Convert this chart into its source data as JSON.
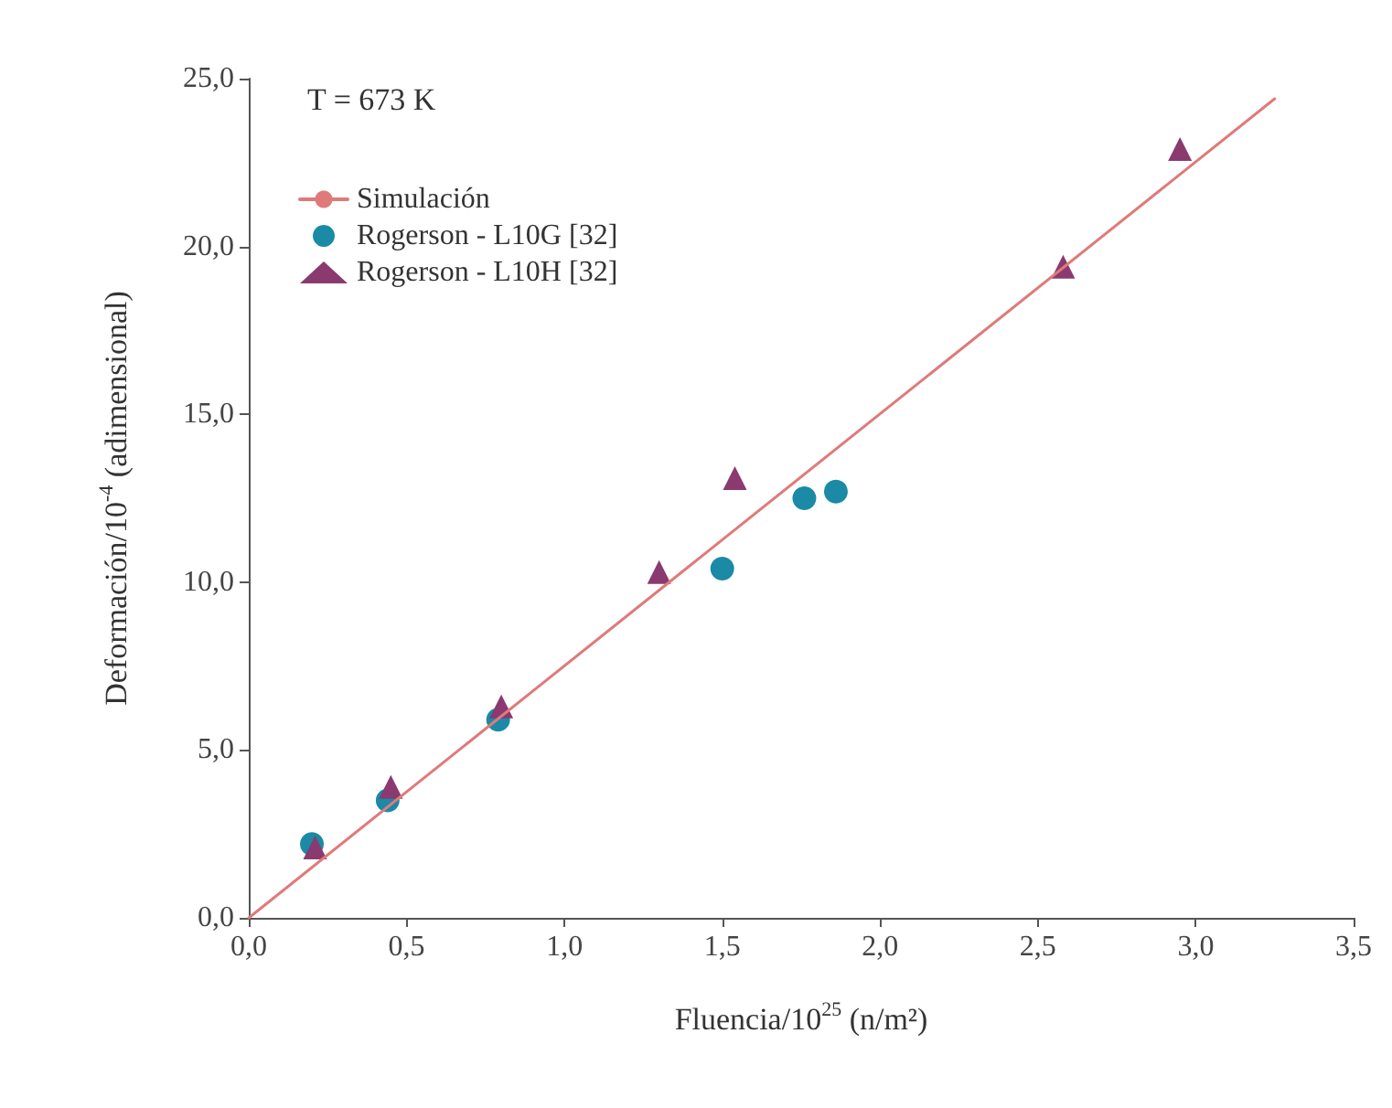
{
  "chart_data": {
    "type": "scatter",
    "xlabel": "Fluencia/10$^{25}$ (n/m²)",
    "ylabel": "Deformación/10$^{-4}$ (adimensional)",
    "annotations": [
      "T = 673 K"
    ],
    "series": [
      {
        "name": "Simulación",
        "type": "line",
        "color": "#e07a7a",
        "x": [
          0,
          3.25
        ],
        "values": [
          0,
          24.4
        ],
        "marker": "none"
      },
      {
        "name": "Rogerson - L10G [32]",
        "color": "#1a8aa6",
        "marker": "circle",
        "x": [
          0.2,
          0.44,
          0.79,
          1.5,
          1.76,
          1.86
        ],
        "values": [
          2.2,
          3.5,
          5.9,
          10.4,
          12.5,
          12.7
        ]
      },
      {
        "name": "Rogerson - L10H [32]",
        "color": "#8a3a6e",
        "marker": "triangle",
        "x": [
          0.21,
          0.45,
          0.8,
          1.3,
          1.54,
          2.58,
          2.95
        ],
        "values": [
          2.1,
          3.9,
          6.3,
          10.3,
          13.1,
          19.4,
          22.9
        ]
      }
    ],
    "xlim": [
      0,
      3.5
    ],
    "xticks": [
      {
        "value": 0,
        "label": "0,0"
      },
      {
        "value": 0.5,
        "label": "0,5"
      },
      {
        "value": 1,
        "label": "1,0"
      },
      {
        "value": 1.5,
        "label": "1,5"
      },
      {
        "value": 2,
        "label": "2,0"
      },
      {
        "value": 2.5,
        "label": "2,5"
      },
      {
        "value": 3,
        "label": "3,0"
      },
      {
        "value": 3.5,
        "label": "3,5"
      }
    ],
    "ylim": [
      0,
      25
    ],
    "yticks": [
      {
        "value": 0,
        "label": "0,0"
      },
      {
        "value": 5,
        "label": "5,0"
      },
      {
        "value": 10,
        "label": "10,0"
      },
      {
        "value": 15,
        "label": "15,0"
      },
      {
        "value": 20,
        "label": "20,0"
      },
      {
        "value": 25,
        "label": "25,0"
      }
    ],
    "grid": false,
    "legend": "top left"
  }
}
